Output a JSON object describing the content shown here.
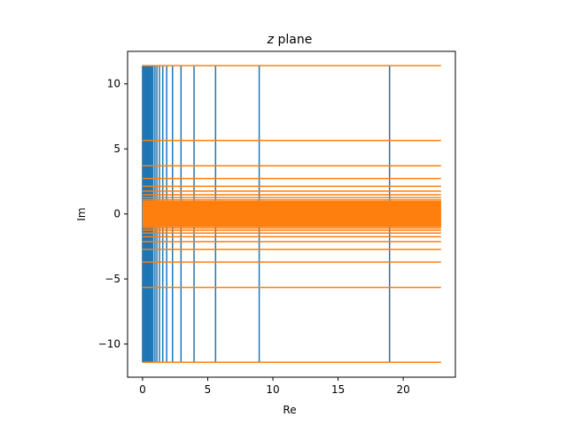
{
  "chart_data": {
    "type": "line",
    "title": {
      "italic": "z",
      "text": " plane"
    },
    "xlabel": "Re",
    "ylabel": "Im",
    "xlim": [
      -1.15,
      24.0
    ],
    "ylim": [
      -12.55,
      12.5
    ],
    "x_ticks": [
      0,
      5,
      10,
      15,
      20
    ],
    "x_tick_labels": [
      "0",
      "5",
      "10",
      "15",
      "20"
    ],
    "y_ticks": [
      -10,
      -5,
      0,
      5,
      10
    ],
    "y_tick_labels": [
      "−10",
      "−5",
      "0",
      "5",
      "10"
    ],
    "grid": false,
    "series": [
      {
        "color": "#1f77b4",
        "orientation": "vertical",
        "span": [
          -11.4,
          11.4
        ],
        "x": [
          0.0,
          0.05,
          0.1,
          0.15,
          0.2,
          0.25,
          0.3,
          0.35,
          0.4,
          0.45,
          0.5,
          0.6,
          0.7,
          0.8,
          0.95,
          1.1,
          1.3,
          1.55,
          1.85,
          2.3,
          2.95,
          3.95,
          5.6,
          8.95,
          18.95
        ]
      },
      {
        "color": "#ff7f0e",
        "orientation": "horizontal",
        "span": [
          0.0,
          22.9
        ],
        "dense_band": [
          -0.95,
          0.95
        ],
        "y": [
          11.4,
          5.65,
          3.7,
          2.72,
          2.13,
          1.75,
          1.47,
          1.25,
          1.08,
          0.95,
          -0.95,
          -1.08,
          -1.25,
          -1.47,
          -1.75,
          -2.13,
          -2.72,
          -3.7,
          -5.65,
          -11.4
        ]
      }
    ]
  }
}
